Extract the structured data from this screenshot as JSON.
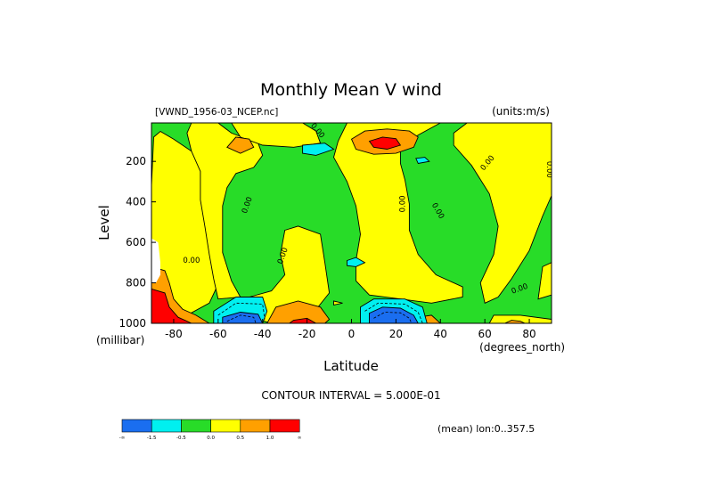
{
  "chart_data": {
    "type": "heatmap",
    "title": "Monthly Mean V wind",
    "file_label": "[VWND_1956-03_NCEP.nc]",
    "units_label": "(units:m/s)",
    "xlabel": "Latitude",
    "ylabel": "Level",
    "x_unit_label": "(degrees_north)",
    "y_unit_label": "(millibar)",
    "xlim": [
      -90,
      90
    ],
    "ylim": [
      1000,
      10
    ],
    "x_ticks": [
      -80,
      -60,
      -40,
      -20,
      0,
      20,
      40,
      60,
      80
    ],
    "x_tick_labels": [
      "-80",
      "-60",
      "-40",
      "-20",
      "0",
      "20",
      "40",
      "60",
      "80"
    ],
    "y_ticks": [
      200,
      400,
      600,
      800,
      1000
    ],
    "y_tick_labels": [
      "200",
      "400",
      "600",
      "800",
      "1000"
    ],
    "contour_interval_text": "CONTOUR INTERVAL = 5.000E-01",
    "mean_note": "(mean) lon:0..357.5",
    "colorbar": {
      "colors": [
        "#1a6ef0",
        "#00f0f0",
        "#28dc28",
        "#ffff00",
        "#ffa000",
        "#ff0000"
      ],
      "tick_labels": [
        "-∞",
        "-1.5",
        "-0.5",
        "0.0",
        "0.5",
        "1.0",
        "∞"
      ]
    },
    "zero_labels": [
      "0.00",
      "0.00",
      "0.00",
      "0.00",
      "0.00",
      "0.00",
      "0.00",
      "0.00",
      "0.00"
    ]
  }
}
